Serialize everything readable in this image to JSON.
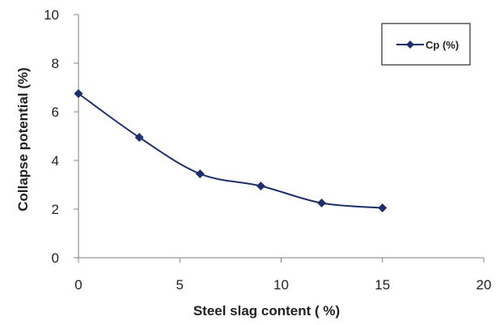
{
  "chart_data": {
    "type": "line",
    "title": "",
    "xlabel": "Steel slag content ( %)",
    "ylabel": "Collapse potential (%)",
    "xlim": [
      0,
      20
    ],
    "ylim": [
      0,
      10
    ],
    "x_ticks": [
      0,
      5,
      10,
      15,
      20
    ],
    "y_ticks": [
      0,
      2,
      4,
      6,
      8,
      10
    ],
    "x_tick_labels": [
      "0",
      "5",
      "10",
      "15",
      "20"
    ],
    "y_tick_labels": [
      "0",
      "2",
      "4",
      "6",
      "8",
      "10"
    ],
    "grid": false,
    "legend_position": "top-right",
    "series": [
      {
        "name": "Cp (%)",
        "x": [
          0,
          3,
          6,
          9,
          12,
          15
        ],
        "values": [
          6.75,
          4.95,
          3.45,
          2.95,
          2.25,
          2.05
        ],
        "color": "#1f2f6b",
        "marker": "diamond",
        "smooth": true
      }
    ]
  }
}
